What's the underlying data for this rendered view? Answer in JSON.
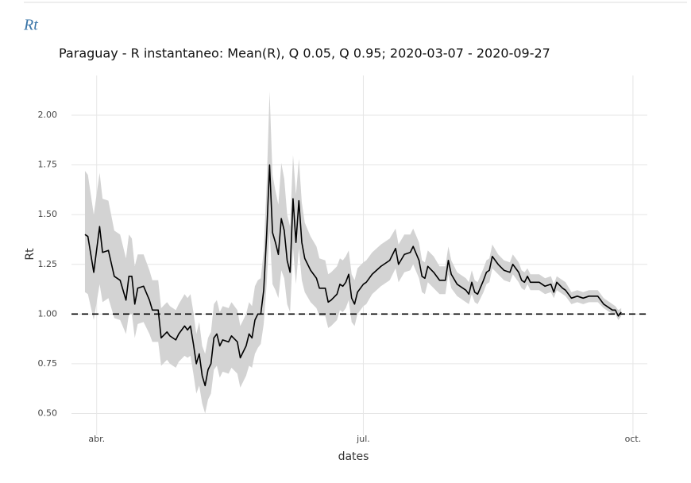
{
  "header": "Rt",
  "chart_data": {
    "type": "line",
    "title": "Paraguay - R instantaneo: Mean(R), Q 0.05, Q 0.95;  2020-03-07 - 2020-09-27",
    "xlabel": "dates",
    "ylabel": "Rt",
    "color": "#000000",
    "band_color": "#d3d3d3",
    "reference_line": 1,
    "grid": true,
    "xlim": [
      -4.6,
      191.9
    ],
    "xticks": [
      {
        "value": 4,
        "label": "abr."
      },
      {
        "value": 95,
        "label": "jul."
      },
      {
        "value": 187,
        "label": "oct."
      }
    ],
    "ylim": [
      0.39,
      2.2
    ],
    "yticks": [
      {
        "value": 0.5,
        "label": "0.50"
      },
      {
        "value": 0.75,
        "label": "0.75"
      },
      {
        "value": 1,
        "label": "1.00"
      },
      {
        "value": 1.25,
        "label": "1.25"
      },
      {
        "value": 1.5,
        "label": "1.50"
      },
      {
        "value": 1.75,
        "label": "1.75"
      },
      {
        "value": 2,
        "label": "2.00"
      }
    ],
    "x": [
      0,
      1,
      3,
      5,
      6,
      8,
      10,
      12,
      14,
      15,
      16,
      17,
      18,
      20,
      22,
      23,
      25,
      26,
      28,
      29,
      31,
      32,
      34,
      35,
      36,
      37,
      38,
      39,
      40,
      41,
      42,
      43,
      44,
      45,
      46,
      47,
      49,
      50,
      52,
      53,
      55,
      56,
      57,
      58,
      59,
      60,
      61,
      62,
      63,
      64,
      65,
      66,
      67,
      68,
      69,
      70,
      71,
      72,
      73,
      74,
      75,
      77,
      79,
      80,
      82,
      83,
      84,
      86,
      87,
      88,
      89,
      90,
      91,
      92,
      93,
      95,
      96,
      98,
      101,
      104,
      106,
      107,
      109,
      111,
      112,
      114,
      115,
      116,
      117,
      119,
      121,
      123,
      124,
      125,
      127,
      130,
      131,
      132,
      133,
      134,
      136,
      137,
      138,
      139,
      141,
      143,
      145,
      146,
      148,
      149,
      150,
      151,
      152,
      155,
      157,
      159,
      160,
      161,
      163,
      164,
      166,
      168,
      170,
      172,
      175,
      177,
      178,
      180,
      181,
      182,
      183
    ],
    "values": [
      1.4,
      1.39,
      1.21,
      1.44,
      1.31,
      1.32,
      1.19,
      1.17,
      1.07,
      1.19,
      1.19,
      1.05,
      1.13,
      1.14,
      1.07,
      1.02,
      1.02,
      0.88,
      0.91,
      0.89,
      0.87,
      0.9,
      0.94,
      0.92,
      0.94,
      0.85,
      0.75,
      0.8,
      0.69,
      0.64,
      0.72,
      0.75,
      0.88,
      0.9,
      0.84,
      0.87,
      0.86,
      0.89,
      0.86,
      0.78,
      0.84,
      0.9,
      0.88,
      0.97,
      1.0,
      1.0,
      1.12,
      1.4,
      1.75,
      1.41,
      1.36,
      1.3,
      1.48,
      1.42,
      1.27,
      1.21,
      1.58,
      1.36,
      1.57,
      1.36,
      1.28,
      1.22,
      1.18,
      1.13,
      1.13,
      1.06,
      1.07,
      1.1,
      1.15,
      1.14,
      1.16,
      1.2,
      1.08,
      1.05,
      1.11,
      1.15,
      1.16,
      1.2,
      1.24,
      1.27,
      1.33,
      1.25,
      1.3,
      1.31,
      1.34,
      1.27,
      1.19,
      1.18,
      1.24,
      1.21,
      1.17,
      1.17,
      1.27,
      1.2,
      1.15,
      1.12,
      1.1,
      1.16,
      1.11,
      1.1,
      1.17,
      1.21,
      1.22,
      1.29,
      1.25,
      1.22,
      1.21,
      1.25,
      1.21,
      1.17,
      1.16,
      1.19,
      1.16,
      1.16,
      1.14,
      1.15,
      1.11,
      1.16,
      1.13,
      1.12,
      1.08,
      1.09,
      1.08,
      1.09,
      1.09,
      1.05,
      1.04,
      1.02,
      1.02,
      0.99,
      1.01
    ],
    "lower": [
      1.11,
      1.1,
      0.97,
      1.15,
      1.06,
      1.08,
      0.98,
      0.97,
      0.9,
      1.0,
      1.0,
      0.88,
      0.95,
      0.96,
      0.9,
      0.86,
      0.86,
      0.74,
      0.77,
      0.75,
      0.73,
      0.76,
      0.79,
      0.78,
      0.79,
      0.7,
      0.6,
      0.64,
      0.55,
      0.5,
      0.57,
      0.6,
      0.72,
      0.74,
      0.68,
      0.71,
      0.7,
      0.73,
      0.7,
      0.63,
      0.69,
      0.74,
      0.73,
      0.8,
      0.83,
      0.85,
      0.95,
      1.15,
      1.42,
      1.15,
      1.12,
      1.08,
      1.22,
      1.18,
      1.05,
      1.01,
      1.33,
      1.15,
      1.33,
      1.17,
      1.11,
      1.06,
      1.03,
      0.99,
      0.99,
      0.93,
      0.94,
      0.97,
      1.02,
      1.01,
      1.03,
      1.07,
      0.96,
      0.94,
      1.0,
      1.04,
      1.05,
      1.1,
      1.14,
      1.17,
      1.23,
      1.16,
      1.21,
      1.22,
      1.25,
      1.18,
      1.11,
      1.1,
      1.16,
      1.13,
      1.1,
      1.1,
      1.2,
      1.13,
      1.09,
      1.06,
      1.05,
      1.1,
      1.06,
      1.05,
      1.11,
      1.15,
      1.16,
      1.23,
      1.2,
      1.17,
      1.16,
      1.2,
      1.16,
      1.13,
      1.12,
      1.15,
      1.12,
      1.12,
      1.1,
      1.11,
      1.08,
      1.12,
      1.1,
      1.09,
      1.05,
      1.06,
      1.05,
      1.06,
      1.06,
      1.03,
      1.02,
      1.0,
      1.0,
      0.97,
      0.99
    ],
    "upper": [
      1.72,
      1.7,
      1.5,
      1.71,
      1.58,
      1.57,
      1.42,
      1.4,
      1.28,
      1.4,
      1.38,
      1.24,
      1.3,
      1.3,
      1.22,
      1.17,
      1.17,
      1.03,
      1.06,
      1.04,
      1.02,
      1.05,
      1.1,
      1.08,
      1.1,
      1.01,
      0.9,
      0.96,
      0.84,
      0.8,
      0.88,
      0.91,
      1.05,
      1.07,
      1.01,
      1.04,
      1.03,
      1.06,
      1.02,
      0.94,
      1.0,
      1.06,
      1.04,
      1.14,
      1.17,
      1.18,
      1.32,
      1.65,
      2.12,
      1.7,
      1.62,
      1.55,
      1.76,
      1.68,
      1.5,
      1.44,
      1.8,
      1.6,
      1.78,
      1.56,
      1.46,
      1.39,
      1.34,
      1.28,
      1.27,
      1.2,
      1.21,
      1.24,
      1.28,
      1.27,
      1.29,
      1.32,
      1.2,
      1.17,
      1.23,
      1.26,
      1.27,
      1.31,
      1.35,
      1.38,
      1.43,
      1.35,
      1.4,
      1.4,
      1.43,
      1.36,
      1.27,
      1.26,
      1.32,
      1.29,
      1.24,
      1.24,
      1.34,
      1.27,
      1.21,
      1.18,
      1.16,
      1.22,
      1.17,
      1.16,
      1.23,
      1.27,
      1.28,
      1.35,
      1.3,
      1.27,
      1.26,
      1.3,
      1.26,
      1.22,
      1.21,
      1.23,
      1.2,
      1.2,
      1.18,
      1.19,
      1.15,
      1.19,
      1.17,
      1.16,
      1.11,
      1.12,
      1.11,
      1.12,
      1.12,
      1.08,
      1.07,
      1.05,
      1.04,
      1.02,
      1.03
    ]
  }
}
